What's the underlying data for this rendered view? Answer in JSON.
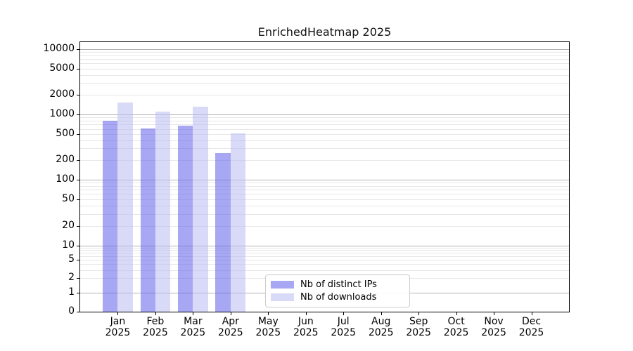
{
  "title": "EnrichedHeatmap 2025",
  "chart_data": {
    "type": "bar",
    "yscale": "symlog",
    "title": "EnrichedHeatmap 2025",
    "categories": [
      "Jan",
      "Feb",
      "Mar",
      "Apr",
      "May",
      "Jun",
      "Jul",
      "Aug",
      "Sep",
      "Oct",
      "Nov",
      "Dec"
    ],
    "tick_year": "2025",
    "series": [
      {
        "name": "Nb of distinct IPs",
        "color": "rgba(95,95,235,0.55)",
        "values": [
          790,
          595,
          670,
          250,
          null,
          null,
          null,
          null,
          null,
          null,
          null,
          null
        ]
      },
      {
        "name": "Nb of downloads",
        "color": "rgba(186,186,242,0.55)",
        "values": [
          1520,
          1100,
          1310,
          510,
          null,
          null,
          null,
          null,
          null,
          null,
          null,
          null
        ]
      }
    ],
    "yticks": [
      0,
      1,
      2,
      5,
      10,
      20,
      50,
      100,
      200,
      500,
      1000,
      2000,
      5000,
      10000
    ],
    "ylim": [
      0,
      13000
    ],
    "grid": true,
    "legend_position": "lower center"
  },
  "colors": {
    "background": "#ffffff",
    "axis": "#000000",
    "grid_major": "#b2b2b2",
    "grid_minor": "#e7e7e7",
    "legend_border": "#cccccc",
    "text": "#000000"
  }
}
